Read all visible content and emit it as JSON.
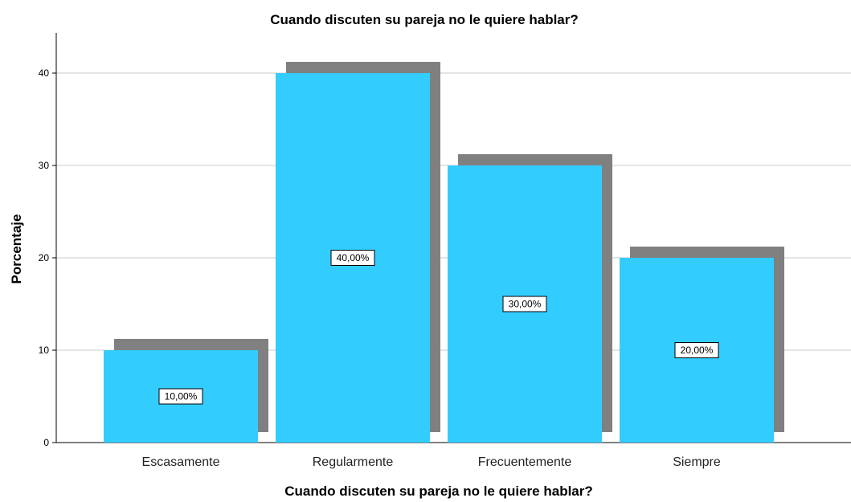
{
  "chart_data": {
    "type": "bar",
    "title": "Cuando discuten su pareja no le quiere hablar?",
    "xlabel": "Cuando discuten su pareja no le quiere hablar?",
    "ylabel": "Porcentaje",
    "categories": [
      "Escasamente",
      "Regularmente",
      "Frecuentemente",
      "Siempre"
    ],
    "values": [
      10,
      40,
      30,
      20
    ],
    "data_labels": [
      "10,00%",
      "40,00%",
      "30,00%",
      "20,00%"
    ],
    "ylim": [
      0,
      44
    ],
    "yticks": [
      0,
      10,
      20,
      30,
      40
    ],
    "grid": true,
    "bar_color": "#33ccff",
    "shadow_color": "#808080"
  }
}
